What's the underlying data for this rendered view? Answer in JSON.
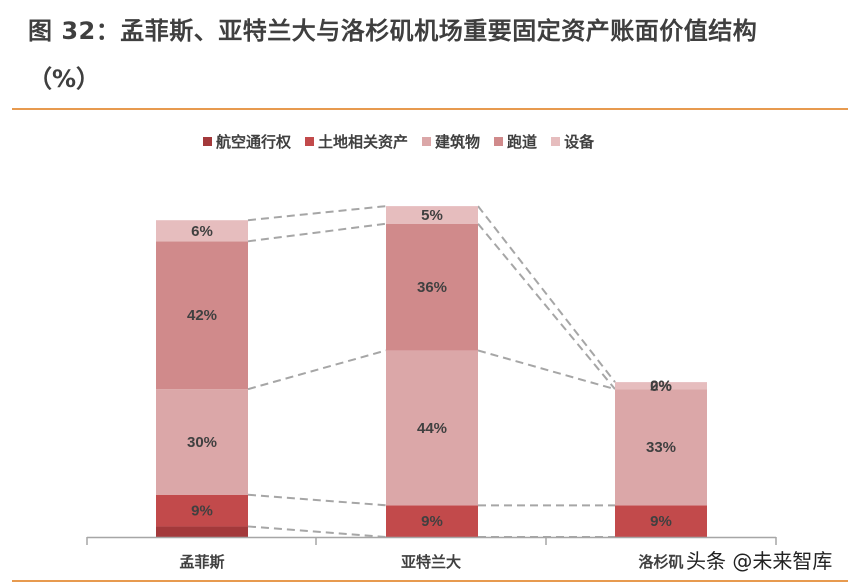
{
  "header": {
    "title": "图 32：孟菲斯、亚特兰大与洛杉矶机场重要固定资产账面价值结构",
    "title_line2": "（%）"
  },
  "watermark": "头条 @未来智库",
  "colors": {
    "航空通行权": "#a3393b",
    "土地相关资产": "#c24a4b",
    "建筑物": "#dba7a8",
    "跑道": "#d08a8b",
    "设备": "#e6bdbe",
    "rule": "#e79a4f",
    "connector": "#a6a6a6"
  },
  "legend": [
    {
      "label": "航空通行权",
      "color": "#a3393b"
    },
    {
      "label": "土地相关资产",
      "color": "#c24a4b"
    },
    {
      "label": "建筑物",
      "color": "#dba7a8"
    },
    {
      "label": "跑道",
      "color": "#d08a8b"
    },
    {
      "label": "设备",
      "color": "#e6bdbe"
    }
  ],
  "categories": [
    "孟菲斯",
    "亚特兰大",
    "洛杉矶"
  ],
  "chart_data": {
    "type": "bar",
    "stacked": true,
    "title": "图 32：孟菲斯、亚特兰大与洛杉矶机场重要固定资产账面价值结构（%）",
    "xlabel": "",
    "ylabel": "",
    "categories": [
      "孟菲斯",
      "亚特兰大",
      "洛杉矶"
    ],
    "series": [
      {
        "name": "航空通行权",
        "values": [
          3,
          0,
          0
        ],
        "labels": [
          "",
          "",
          ""
        ]
      },
      {
        "name": "土地相关资产",
        "values": [
          9,
          9,
          9
        ],
        "labels": [
          "9%",
          "9%",
          "9%"
        ]
      },
      {
        "name": "建筑物",
        "values": [
          30,
          44,
          33
        ],
        "labels": [
          "30%",
          "44%",
          "33%"
        ]
      },
      {
        "name": "跑道",
        "values": [
          42,
          36,
          0
        ],
        "labels": [
          "42%",
          "36%",
          "0%"
        ]
      },
      {
        "name": "设备",
        "values": [
          6,
          5,
          2
        ],
        "labels": [
          "6%",
          "5%",
          "2%"
        ]
      }
    ],
    "legend_position": "top",
    "grid": false,
    "series_lines": true,
    "y_axis_visible": false
  }
}
